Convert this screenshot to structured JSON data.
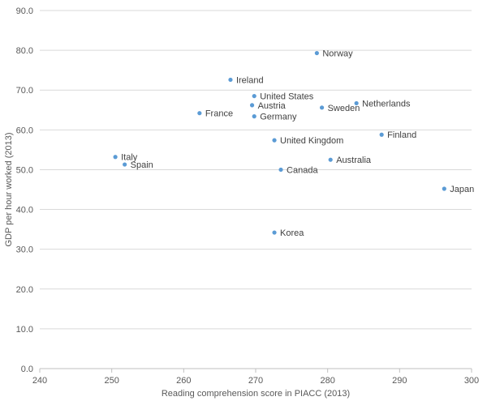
{
  "chart_data": {
    "type": "scatter",
    "title": "",
    "xlabel": "Reading comprehension score in PIACC (2013)",
    "ylabel": "GDP per hour worked (2013)",
    "xlim": [
      240,
      300
    ],
    "ylim": [
      0,
      90
    ],
    "x_ticks": [
      240,
      250,
      260,
      270,
      280,
      290,
      300
    ],
    "x_tick_labels": [
      "240",
      "250",
      "260",
      "270",
      "280",
      "290",
      "300"
    ],
    "y_ticks": [
      0,
      10,
      20,
      30,
      40,
      50,
      60,
      70,
      80,
      90
    ],
    "y_tick_labels": [
      "0.0",
      "10.0",
      "20.0",
      "30.0",
      "40.0",
      "50.0",
      "60.0",
      "70.0",
      "80.0",
      "90.0"
    ],
    "grid": "horizontal",
    "legend": "none",
    "marker_color": "#5B9BD5",
    "gridline_color": "#D9D9D9",
    "points": [
      {
        "label": "Norway",
        "x": 278.5,
        "y": 79.3
      },
      {
        "label": "Ireland",
        "x": 266.5,
        "y": 72.6
      },
      {
        "label": "United States",
        "x": 269.8,
        "y": 68.5
      },
      {
        "label": "Austria",
        "x": 269.5,
        "y": 66.2
      },
      {
        "label": "Netherlands",
        "x": 284.0,
        "y": 66.7
      },
      {
        "label": "Sweden",
        "x": 279.2,
        "y": 65.6
      },
      {
        "label": "France",
        "x": 262.2,
        "y": 64.2
      },
      {
        "label": "Germany",
        "x": 269.8,
        "y": 63.4
      },
      {
        "label": "Finland",
        "x": 287.5,
        "y": 58.8
      },
      {
        "label": "United Kingdom",
        "x": 272.6,
        "y": 57.4
      },
      {
        "label": "Italy",
        "x": 250.5,
        "y": 53.2
      },
      {
        "label": "Australia",
        "x": 280.4,
        "y": 52.5
      },
      {
        "label": "Spain",
        "x": 251.8,
        "y": 51.3
      },
      {
        "label": "Canada",
        "x": 273.5,
        "y": 50.0
      },
      {
        "label": "Japan",
        "x": 296.2,
        "y": 45.2
      },
      {
        "label": "Korea",
        "x": 272.6,
        "y": 34.2
      }
    ]
  }
}
